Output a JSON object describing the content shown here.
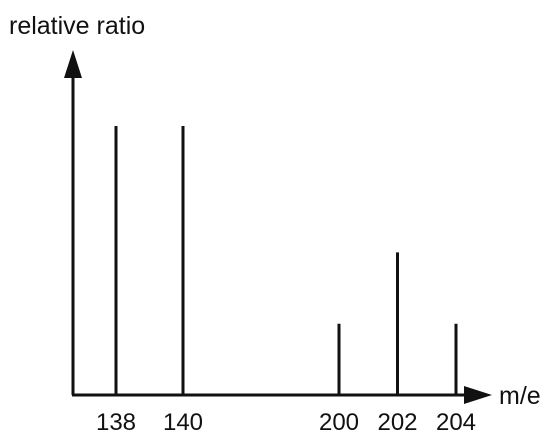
{
  "chart_data": {
    "type": "bar",
    "ylabel": "relative ratio",
    "xlabel": "m/e",
    "categories": [
      "138",
      "140",
      "200",
      "202",
      "204"
    ],
    "x": [
      138,
      140,
      200,
      202,
      204
    ],
    "values": [
      100,
      100,
      26.5,
      53,
      26.5
    ],
    "y_unit_ticks": "none",
    "grid": false,
    "legend": "none",
    "colors": {
      "ink": "#111111"
    }
  }
}
